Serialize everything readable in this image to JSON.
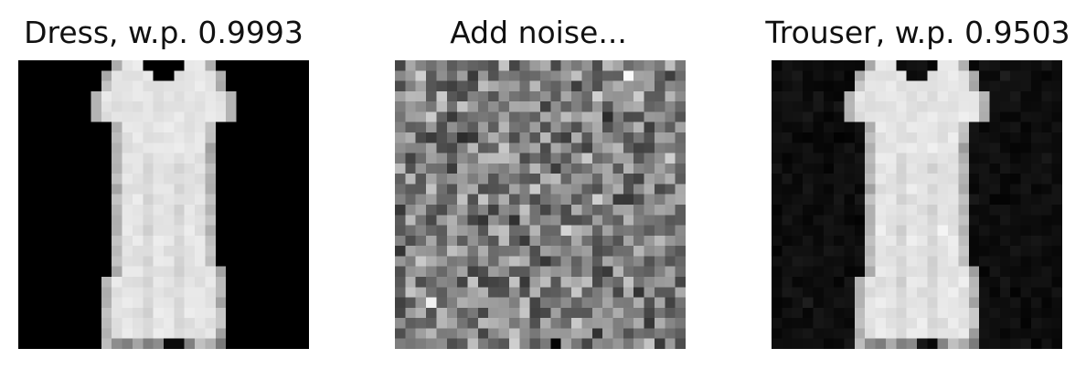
{
  "panels": [
    {
      "title": "Dress, w.p. 0.9993"
    },
    {
      "title": "Add noise..."
    },
    {
      "title": "Trouser, w.p. 0.9503"
    }
  ]
}
